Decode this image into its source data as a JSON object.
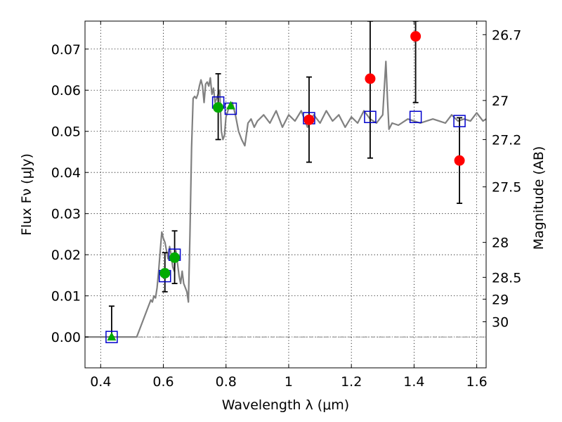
{
  "chart_data": {
    "type": "scatter",
    "xlabel": "Wavelength  λ (μm)",
    "ylabel": "Flux  Fν (μJy)",
    "ylabel_right": "Magnitude (AB)",
    "xlim": [
      0.35,
      1.63
    ],
    "ylim": [
      -0.0075,
      0.0768
    ],
    "x_ticks": [
      0.4,
      0.6,
      0.8,
      1.0,
      1.2,
      1.4,
      1.6
    ],
    "x_tick_labels": [
      "0.4",
      "0.6",
      "0.8",
      "1",
      "1.2",
      "1.4",
      "1.6"
    ],
    "y_ticks": [
      0.0,
      0.01,
      0.02,
      0.03,
      0.04,
      0.05,
      0.06,
      0.07
    ],
    "y_tick_labels": [
      "0.00",
      "0.01",
      "0.02",
      "0.03",
      "0.04",
      "0.05",
      "0.06",
      "0.07"
    ],
    "right_ticks": [
      {
        "flux": 0.0735,
        "label": "26.7"
      },
      {
        "flux": 0.0575,
        "label": "27"
      },
      {
        "flux": 0.048,
        "label": "27.2"
      },
      {
        "flux": 0.0365,
        "label": "27.5"
      },
      {
        "flux": 0.023,
        "label": "28"
      },
      {
        "flux": 0.0145,
        "label": "28.5"
      },
      {
        "flux": 0.0092,
        "label": "29"
      },
      {
        "flux": 0.0037,
        "label": "30"
      }
    ],
    "grid": true,
    "zero_line": true,
    "colors": {
      "model": "#808080",
      "green": "#00aa00",
      "red": "#ff0000",
      "box": "#0000cc",
      "errorbar": "#000000"
    },
    "model_spectrum": {
      "x": [
        0.35,
        0.5,
        0.515,
        0.53,
        0.545,
        0.56,
        0.565,
        0.57,
        0.575,
        0.58,
        0.585,
        0.59,
        0.595,
        0.6,
        0.605,
        0.61,
        0.615,
        0.62,
        0.625,
        0.63,
        0.635,
        0.64,
        0.645,
        0.65,
        0.655,
        0.66,
        0.665,
        0.67,
        0.675,
        0.68,
        0.685,
        0.69,
        0.695,
        0.7,
        0.705,
        0.71,
        0.715,
        0.72,
        0.725,
        0.73,
        0.735,
        0.74,
        0.745,
        0.75,
        0.755,
        0.76,
        0.765,
        0.77,
        0.775,
        0.78,
        0.785,
        0.79,
        0.795,
        0.8,
        0.81,
        0.82,
        0.83,
        0.84,
        0.85,
        0.86,
        0.87,
        0.88,
        0.89,
        0.9,
        0.92,
        0.94,
        0.96,
        0.98,
        1.0,
        1.02,
        1.04,
        1.06,
        1.08,
        1.1,
        1.12,
        1.14,
        1.16,
        1.18,
        1.2,
        1.22,
        1.24,
        1.26,
        1.28,
        1.3,
        1.31,
        1.315,
        1.32,
        1.33,
        1.35,
        1.38,
        1.4,
        1.42,
        1.44,
        1.46,
        1.48,
        1.5,
        1.52,
        1.54,
        1.56,
        1.58,
        1.6,
        1.62,
        1.63
      ],
      "y": [
        0.0,
        0.0,
        0.0,
        0.003,
        0.006,
        0.009,
        0.0085,
        0.01,
        0.0095,
        0.012,
        0.016,
        0.021,
        0.0255,
        0.024,
        0.023,
        0.021,
        0.019,
        0.022,
        0.02,
        0.017,
        0.016,
        0.021,
        0.018,
        0.015,
        0.013,
        0.016,
        0.013,
        0.012,
        0.011,
        0.0085,
        0.025,
        0.046,
        0.058,
        0.0585,
        0.058,
        0.059,
        0.061,
        0.0625,
        0.061,
        0.057,
        0.0615,
        0.062,
        0.061,
        0.063,
        0.059,
        0.0605,
        0.057,
        0.058,
        0.059,
        0.06,
        0.05,
        0.048,
        0.049,
        0.0535,
        0.056,
        0.057,
        0.054,
        0.05,
        0.048,
        0.0465,
        0.052,
        0.053,
        0.051,
        0.0525,
        0.054,
        0.052,
        0.055,
        0.051,
        0.054,
        0.0525,
        0.055,
        0.051,
        0.054,
        0.052,
        0.055,
        0.0525,
        0.054,
        0.051,
        0.0535,
        0.052,
        0.055,
        0.053,
        0.052,
        0.054,
        0.067,
        0.058,
        0.0505,
        0.052,
        0.0515,
        0.053,
        0.0525,
        0.052,
        0.0525,
        0.053,
        0.0525,
        0.052,
        0.054,
        0.0525,
        0.053,
        0.0525,
        0.0545,
        0.0525,
        0.053
      ]
    },
    "green_points": [
      {
        "x": 0.605,
        "y": 0.0155,
        "err_low": 0.011,
        "err_high": 0.0205
      },
      {
        "x": 0.636,
        "y": 0.0193,
        "err_low": 0.013,
        "err_high": 0.0258
      },
      {
        "x": 0.775,
        "y": 0.0558,
        "err_low": 0.048,
        "err_high": 0.064
      }
    ],
    "green_triangles": [
      {
        "x": 0.435,
        "y": 0.0,
        "err_low": 0.0,
        "err_high": 0.0075
      },
      {
        "x": 0.815,
        "y": 0.0562
      }
    ],
    "red_points": [
      {
        "x": 1.065,
        "y": 0.0528,
        "err_low": 0.0425,
        "err_high": 0.0632
      },
      {
        "x": 1.26,
        "y": 0.0628,
        "err_low": 0.0435,
        "err_high": 0.0768
      },
      {
        "x": 1.405,
        "y": 0.0731,
        "err_low": 0.057,
        "err_high": 0.0768
      },
      {
        "x": 1.545,
        "y": 0.0429,
        "err_low": 0.0325,
        "err_high": 0.0533
      }
    ],
    "box_points": [
      {
        "x": 0.435,
        "y": 0.0
      },
      {
        "x": 0.605,
        "y": 0.0148
      },
      {
        "x": 0.636,
        "y": 0.02
      },
      {
        "x": 0.775,
        "y": 0.057
      },
      {
        "x": 0.815,
        "y": 0.0555
      },
      {
        "x": 1.065,
        "y": 0.0532
      },
      {
        "x": 1.26,
        "y": 0.0535
      },
      {
        "x": 1.405,
        "y": 0.0535
      },
      {
        "x": 1.545,
        "y": 0.0525
      }
    ]
  }
}
